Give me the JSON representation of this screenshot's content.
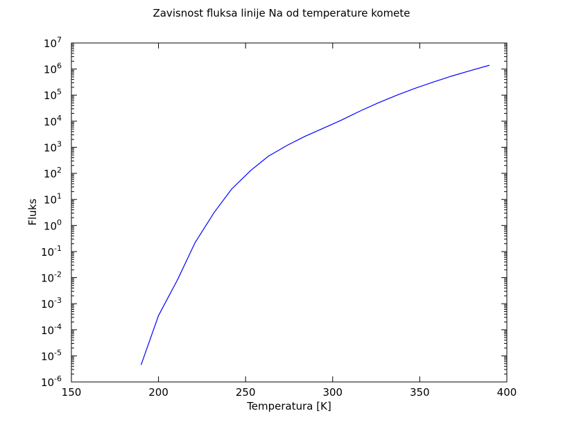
{
  "chart_data": {
    "type": "line",
    "title": "Zavisnost fluksa linije Na od temperature komete",
    "xlabel": "Temperatura [K]",
    "ylabel": "Fluks",
    "xlim": [
      150,
      400
    ],
    "ylim": [
      1e-06,
      10000000.0
    ],
    "yscale": "log",
    "grid": false,
    "xticks": [
      "150",
      "200",
      "250",
      "300",
      "350",
      "400"
    ],
    "yticks": [
      {
        "base": "10",
        "exp": "-6"
      },
      {
        "base": "10",
        "exp": "-5"
      },
      {
        "base": "10",
        "exp": "-4"
      },
      {
        "base": "10",
        "exp": "-3"
      },
      {
        "base": "10",
        "exp": "-2"
      },
      {
        "base": "10",
        "exp": "-1"
      },
      {
        "base": "10",
        "exp": "0"
      },
      {
        "base": "10",
        "exp": "1"
      },
      {
        "base": "10",
        "exp": "2"
      },
      {
        "base": "10",
        "exp": "3"
      },
      {
        "base": "10",
        "exp": "4"
      },
      {
        "base": "10",
        "exp": "5"
      },
      {
        "base": "10",
        "exp": "6"
      },
      {
        "base": "10",
        "exp": "7"
      }
    ],
    "series": [
      {
        "color": "#0000ff",
        "x": [
          190,
          200,
          211,
          221,
          232,
          242,
          253,
          263,
          274,
          284,
          295,
          305,
          316,
          326,
          337,
          347,
          358,
          368,
          379,
          390
        ],
        "y": [
          4.5e-06,
          0.00035,
          0.0085,
          0.22,
          3.2,
          25,
          130,
          450,
          1200,
          2600,
          5500,
          11000,
          25000,
          50000,
          100000,
          180000,
          320000,
          530000,
          870000,
          1400000
        ]
      }
    ]
  }
}
